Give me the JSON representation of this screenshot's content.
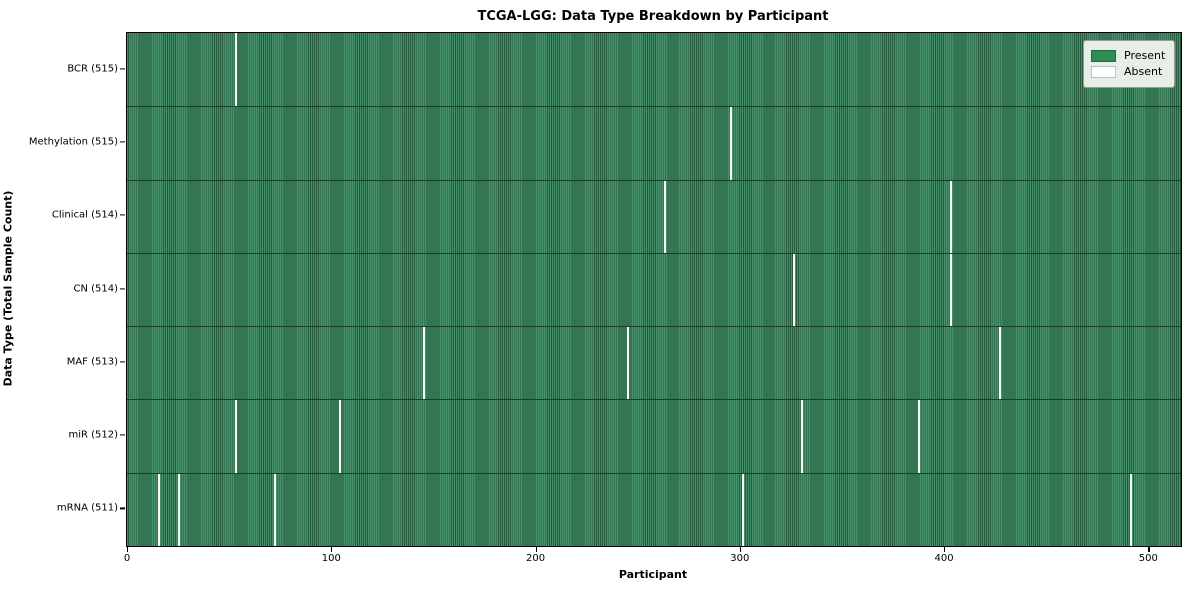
{
  "title": "TCGA-LGG: Data Type Breakdown by Participant",
  "chart_data": {
    "type": "heatmap",
    "title": "TCGA-LGG: Data Type Breakdown by Participant",
    "xlabel": "Participant",
    "ylabel": "Data Type (Total Sample Count)",
    "x_ticks": [
      0,
      100,
      200,
      300,
      400,
      500
    ],
    "x_range": [
      -0.5,
      515.5
    ],
    "n_participants": 516,
    "grid": false,
    "legend_position": "upper right",
    "legend": [
      {
        "label": "Present",
        "color": "#2e8b57"
      },
      {
        "label": "Absent",
        "color": "#ffffff"
      }
    ],
    "rows": [
      {
        "label": "BCR (515)",
        "present_count": 515,
        "absent_participants": [
          53
        ]
      },
      {
        "label": "Methylation (515)",
        "present_count": 515,
        "absent_participants": [
          295
        ]
      },
      {
        "label": "Clinical (514)",
        "present_count": 514,
        "absent_participants": [
          263,
          403
        ]
      },
      {
        "label": "CN (514)",
        "present_count": 514,
        "absent_participants": [
          326,
          403
        ]
      },
      {
        "label": "MAF (513)",
        "present_count": 513,
        "absent_participants": [
          145,
          245,
          427
        ]
      },
      {
        "label": "miR (512)",
        "present_count": 512,
        "absent_participants": [
          53,
          104,
          330,
          387
        ]
      },
      {
        "label": "mRNA (511)",
        "present_count": 511,
        "absent_participants": [
          15,
          25,
          72,
          301,
          491
        ]
      }
    ],
    "colors": {
      "present_fill": "#2e8b57",
      "present_stripe_light": "#47906a",
      "present_stripe_dark": "#235b3b",
      "absent_fill": "#fbfbfb",
      "axis": "#000000",
      "legend_bg": "#e7ede7"
    }
  }
}
